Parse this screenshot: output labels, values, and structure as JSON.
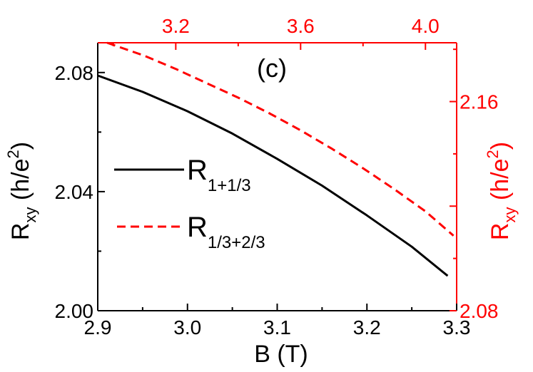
{
  "chart_data": {
    "type": "line",
    "panel_label": "(c)",
    "x_axis": {
      "label": "B (T)",
      "range": [
        2.9,
        3.3
      ],
      "ticks": [
        2.9,
        3.0,
        3.1,
        3.2,
        3.3
      ],
      "tick_labels": [
        "2.9",
        "3.0",
        "3.1",
        "3.2",
        "3.3"
      ]
    },
    "x2_axis": {
      "color": "#ff0000",
      "range": [
        2.95,
        4.1
      ],
      "ticks": [
        3.2,
        3.6,
        4.0
      ],
      "tick_labels": [
        "3.2",
        "3.6",
        "4.0"
      ]
    },
    "y_axis": {
      "label_main": "R",
      "label_sub": "xy",
      "label_unit": "(h/e",
      "label_sup": "2",
      "label_close": ")",
      "range": [
        2.0,
        2.09
      ],
      "ticks": [
        2.0,
        2.04,
        2.08
      ],
      "tick_labels": [
        "2.00",
        "2.04",
        "2.08"
      ]
    },
    "y2_axis": {
      "color": "#ff0000",
      "label_main": "R",
      "label_sub": "xy",
      "label_unit": "(h/e",
      "label_sup": "2",
      "label_close": ")",
      "range": [
        2.08,
        2.1825
      ],
      "ticks": [
        2.08,
        2.12,
        2.16
      ],
      "tick_labels": [
        "2.08",
        "",
        "2.16"
      ]
    },
    "series": [
      {
        "legend_main": "R",
        "legend_sub": "1+1/3",
        "color": "#000000",
        "style": "solid",
        "axes": "bottom-left",
        "x": [
          2.9,
          2.95,
          3.0,
          3.05,
          3.1,
          3.15,
          3.2,
          3.25,
          3.29
        ],
        "y": [
          2.079,
          2.0735,
          2.067,
          2.0595,
          2.051,
          2.042,
          2.032,
          2.0215,
          2.0117
        ]
      },
      {
        "legend_main": "R",
        "legend_sub": "1/3+2/3",
        "color": "#ff0000",
        "style": "dashed",
        "axes": "top-right",
        "x": [
          2.98,
          3.1,
          3.2,
          3.3,
          3.4,
          3.5,
          3.6,
          3.7,
          3.8,
          3.9,
          4.0,
          4.09
        ],
        "y": [
          2.1825,
          2.1775,
          2.1725,
          2.167,
          2.1615,
          2.1555,
          2.149,
          2.142,
          2.1345,
          2.1265,
          2.118,
          2.1087
        ]
      }
    ]
  }
}
